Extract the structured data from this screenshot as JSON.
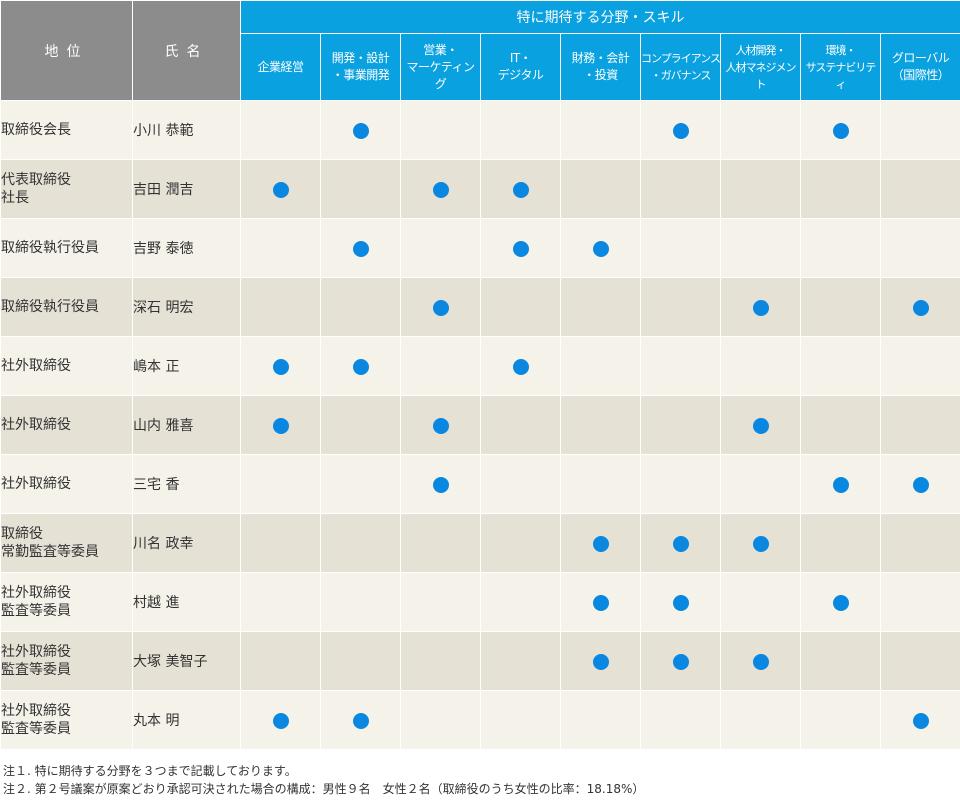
{
  "table": {
    "col_position": "地位",
    "col_name": "氏名",
    "skills_header": "特に期待する分野・スキル",
    "skills": [
      {
        "label": "企業経営"
      },
      {
        "label": "開発・設計\n・事業開発"
      },
      {
        "label": "営業・\nマーケティング"
      },
      {
        "label": "IT・\nデジタル"
      },
      {
        "label": "財務・会計\n・投資"
      },
      {
        "label": "コンプライアンス\n・ガバナンス"
      },
      {
        "label": "人材開発・\n人材マネジメント"
      },
      {
        "label": "環境・\nサステナビリティ"
      },
      {
        "label": "グローバル\n（国際性）"
      }
    ],
    "rows": [
      {
        "position": "取締役会長",
        "name": "小川 恭範",
        "marks": [
          0,
          1,
          0,
          0,
          0,
          1,
          0,
          1,
          0
        ]
      },
      {
        "position": "代表取締役\n社長",
        "name": "吉田 潤吉",
        "marks": [
          1,
          0,
          1,
          1,
          0,
          0,
          0,
          0,
          0
        ]
      },
      {
        "position": "取締役執行役員",
        "name": "吉野 泰徳",
        "marks": [
          0,
          1,
          0,
          1,
          1,
          0,
          0,
          0,
          0
        ]
      },
      {
        "position": "取締役執行役員",
        "name": "深石 明宏",
        "marks": [
          0,
          0,
          1,
          0,
          0,
          0,
          1,
          0,
          1
        ]
      },
      {
        "position": "社外取締役",
        "name": "嶋本 正",
        "marks": [
          1,
          1,
          0,
          1,
          0,
          0,
          0,
          0,
          0
        ]
      },
      {
        "position": "社外取締役",
        "name": "山内 雅喜",
        "marks": [
          1,
          0,
          1,
          0,
          0,
          0,
          1,
          0,
          0
        ]
      },
      {
        "position": "社外取締役",
        "name": "三宅 香",
        "marks": [
          0,
          0,
          1,
          0,
          0,
          0,
          0,
          1,
          1
        ]
      },
      {
        "position": "取締役\n常勤監査等委員",
        "name": "川名 政幸",
        "marks": [
          0,
          0,
          0,
          0,
          1,
          1,
          1,
          0,
          0
        ]
      },
      {
        "position": "社外取締役\n監査等委員",
        "name": "村越 進",
        "marks": [
          0,
          0,
          0,
          0,
          1,
          1,
          0,
          1,
          0
        ]
      },
      {
        "position": "社外取締役\n監査等委員",
        "name": "大塚 美智子",
        "marks": [
          0,
          0,
          0,
          0,
          1,
          1,
          1,
          0,
          0
        ]
      },
      {
        "position": "社外取締役\n監査等委員",
        "name": "丸本 明",
        "marks": [
          1,
          1,
          0,
          0,
          0,
          0,
          0,
          0,
          1
        ]
      }
    ]
  },
  "notes": [
    "注１. 特に期待する分野を３つまで記載しております。",
    "注２. 第２号議案が原案どおり承認可決された場合の構成：男性９名　女性２名（取締役のうち女性の比率：18.18%）"
  ],
  "colors": {
    "header_blue": "#0aa1e0",
    "header_gray": "#8c8c8c",
    "dot": "#0a87e0",
    "row_light": "#f5f2e9",
    "row_dark": "#e6e1d5"
  }
}
